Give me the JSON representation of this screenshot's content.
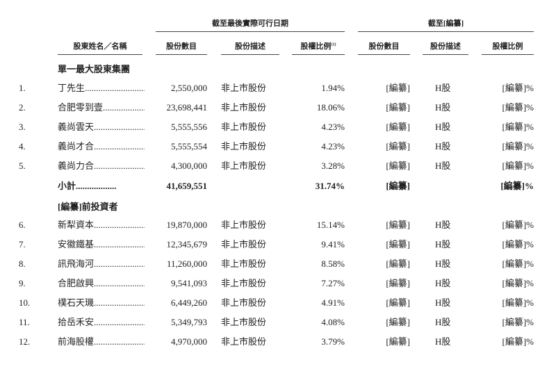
{
  "header": {
    "group1_title": "截至最後實際可行日期",
    "group2_title": "截至[編纂]",
    "columns": {
      "name": "股東姓名／名稱",
      "shares": "股份數目",
      "description": "股份描述",
      "ratio": "股權比例",
      "ratio_note": "(1)",
      "shares2": "股份數目",
      "description2": "股份描述",
      "ratio2": "股權比例"
    }
  },
  "section1": {
    "title": "單一最大股東集團",
    "rows": [
      {
        "num": "1.",
        "name": "丁先生",
        "shares": "2,550,000",
        "desc": "非上市股份",
        "pct": "1.94%",
        "shares2": "[編纂]",
        "desc2": "H股",
        "ratio2": "[編纂]%"
      },
      {
        "num": "2.",
        "name": "合肥零到壹",
        "shares": "23,698,441",
        "desc": "非上市股份",
        "pct": "18.06%",
        "shares2": "[編纂]",
        "desc2": "H股",
        "ratio2": "[編纂]%"
      },
      {
        "num": "3.",
        "name": "義尚雲天",
        "shares": "5,555,556",
        "desc": "非上市股份",
        "pct": "4.23%",
        "shares2": "[編纂]",
        "desc2": "H股",
        "ratio2": "[編纂]%"
      },
      {
        "num": "4.",
        "name": "義尚才合",
        "shares": "5,555,554",
        "desc": "非上市股份",
        "pct": "4.23%",
        "shares2": "[編纂]",
        "desc2": "H股",
        "ratio2": "[編纂]%"
      },
      {
        "num": "5.",
        "name": "義尚力合",
        "shares": "4,300,000",
        "desc": "非上市股份",
        "pct": "3.28%",
        "shares2": "[編纂]",
        "desc2": "H股",
        "ratio2": "[編纂]%"
      }
    ],
    "subtotal": {
      "name": "小計",
      "shares": "41,659,551",
      "pct": "31.74%",
      "shares2": "[編纂]",
      "ratio2": "[編纂]%"
    }
  },
  "section2": {
    "title": "[編纂]前投資者",
    "rows": [
      {
        "num": "6.",
        "name": "新犁資本",
        "shares": "19,870,000",
        "desc": "非上市股份",
        "pct": "15.14%",
        "shares2": "[編纂]",
        "desc2": "H股",
        "ratio2": "[編纂]%"
      },
      {
        "num": "7.",
        "name": "安徽鐵基",
        "shares": "12,345,679",
        "desc": "非上市股份",
        "pct": "9.41%",
        "shares2": "[編纂]",
        "desc2": "H股",
        "ratio2": "[編纂]%"
      },
      {
        "num": "8.",
        "name": "訊飛海河",
        "shares": "11,260,000",
        "desc": "非上市股份",
        "pct": "8.58%",
        "shares2": "[編纂]",
        "desc2": "H股",
        "ratio2": "[編纂]%"
      },
      {
        "num": "9.",
        "name": "合肥啟興",
        "shares": "9,541,093",
        "desc": "非上市股份",
        "pct": "7.27%",
        "shares2": "[編纂]",
        "desc2": "H股",
        "ratio2": "[編纂]%"
      },
      {
        "num": "10.",
        "name": "樸石天璣",
        "shares": "6,449,260",
        "desc": "非上市股份",
        "pct": "4.91%",
        "shares2": "[編纂]",
        "desc2": "H股",
        "ratio2": "[編纂]%"
      },
      {
        "num": "11.",
        "name": "拾岳禾安",
        "shares": "5,349,793",
        "desc": "非上市股份",
        "pct": "4.08%",
        "shares2": "[編纂]",
        "desc2": "H股",
        "ratio2": "[編纂]%"
      },
      {
        "num": "12.",
        "name": "前海股權",
        "shares": "4,970,000",
        "desc": "非上市股份",
        "pct": "3.79%",
        "shares2": "[編纂]",
        "desc2": "H股",
        "ratio2": "[編纂]%"
      }
    ]
  }
}
